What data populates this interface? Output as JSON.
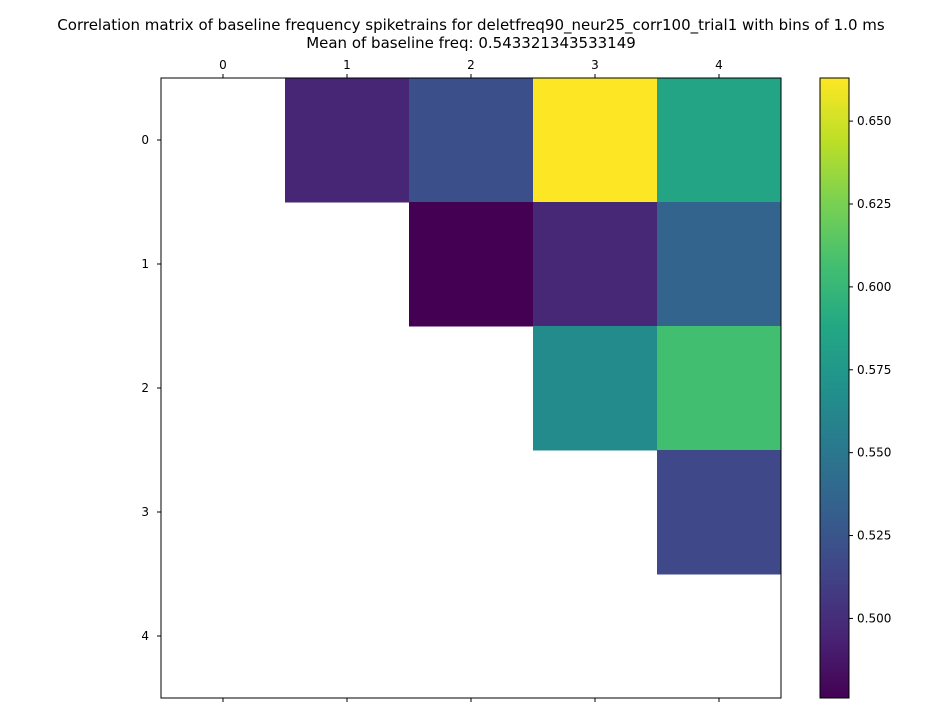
{
  "title_line1": "Correlation matrix of baseline frequency spiketrains for deletfreq90_neur25_corr100_trial1 with bins of 1.0 ms",
  "title_line2": "Mean of baseline freq: 0.543321343533149",
  "chart_data": {
    "type": "heatmap",
    "title": "Correlation matrix of baseline frequency spiketrains for deletfreq90_neur25_corr100_trial1 with bins of 1.0 ms\nMean of baseline freq: 0.543321343533149",
    "x_ticks": [
      "0",
      "1",
      "2",
      "3",
      "4"
    ],
    "y_ticks": [
      "0",
      "1",
      "2",
      "3",
      "4"
    ],
    "x_tick_position": "top",
    "matrix": [
      [
        null,
        0.496,
        0.522,
        0.663,
        0.585
      ],
      [
        null,
        null,
        0.476,
        0.497,
        0.536
      ],
      [
        null,
        null,
        null,
        0.565,
        0.606
      ],
      [
        null,
        null,
        null,
        null,
        0.516
      ],
      [
        null,
        null,
        null,
        null,
        null
      ]
    ],
    "colormap": "viridis",
    "colorbar": {
      "vmin": 0.476,
      "vmax": 0.663,
      "ticks": [
        "0.500",
        "0.525",
        "0.550",
        "0.575",
        "0.600",
        "0.625",
        "0.650"
      ],
      "tick_values": [
        0.5,
        0.525,
        0.55,
        0.575,
        0.6,
        0.625,
        0.65
      ]
    },
    "grid": false
  }
}
